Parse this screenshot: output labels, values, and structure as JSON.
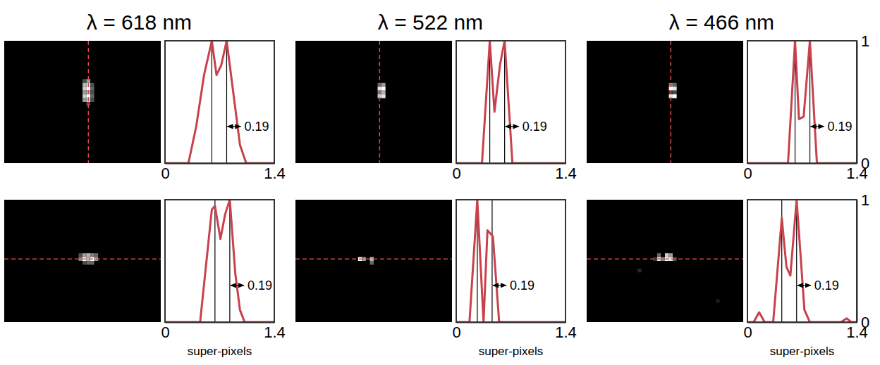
{
  "chart_data": [
    {
      "type": "heatmap",
      "title": "λ = 618 nm",
      "xlim": [
        0,
        40
      ],
      "ylim": [
        0,
        32
      ],
      "tick_labels": false,
      "color": "#e0454f",
      "cut_x": 21.5,
      "cells": [
        [
          10,
          20,
          0.3
        ],
        [
          10,
          21,
          0.6
        ],
        [
          11,
          20,
          0.7
        ],
        [
          11,
          21,
          0.9
        ],
        [
          11,
          22,
          0.3
        ],
        [
          12,
          20,
          0.8
        ],
        [
          12,
          21,
          1
        ],
        [
          12,
          22,
          0.4
        ],
        [
          13,
          20,
          0.6
        ],
        [
          13,
          21,
          0.7
        ],
        [
          13,
          22,
          0.3
        ],
        [
          14,
          20,
          0.8
        ],
        [
          14,
          21,
          1
        ],
        [
          14,
          22,
          0.4
        ],
        [
          15,
          20,
          0.6
        ],
        [
          15,
          21,
          0.8
        ],
        [
          15,
          22,
          0.3
        ],
        [
          16,
          21,
          0.3
        ]
      ]
    },
    {
      "type": "line",
      "color": "#c8414b",
      "xlim": [
        0,
        1.4
      ],
      "xticks": [
        0,
        1.4
      ],
      "ylim": [
        0,
        1
      ],
      "tick_labels": "x",
      "x": [
        0,
        0.3,
        0.4,
        0.5,
        0.6,
        0.66,
        0.72,
        0.79,
        0.88,
        0.96,
        1.04,
        1.4
      ],
      "values": [
        0,
        0,
        0.3,
        0.72,
        1,
        0.72,
        0.8,
        1,
        0.55,
        0.15,
        0,
        0
      ],
      "markers": [
        0.6,
        0.79
      ],
      "separation": 0.19
    },
    {
      "type": "heatmap",
      "title": "λ = 522 nm",
      "xlim": [
        0,
        40
      ],
      "ylim": [
        0,
        32
      ],
      "tick_labels": false,
      "color": "#e0454f",
      "cut_x": 21.5,
      "cells": [
        [
          11,
          21,
          0.4
        ],
        [
          11,
          22,
          0.6
        ],
        [
          12,
          21,
          0.9
        ],
        [
          12,
          22,
          1
        ],
        [
          13,
          21,
          0.5
        ],
        [
          13,
          22,
          0.7
        ],
        [
          14,
          21,
          0.8
        ],
        [
          14,
          22,
          0.9
        ]
      ]
    },
    {
      "type": "line",
      "color": "#c8414b",
      "xlim": [
        0,
        1.4
      ],
      "xticks": [
        0,
        1.4
      ],
      "ylim": [
        0,
        1
      ],
      "tick_labels": "x",
      "x": [
        0,
        0.33,
        0.43,
        0.49,
        0.56,
        0.62,
        0.72,
        1.4
      ],
      "values": [
        0,
        0,
        1,
        0.42,
        0.8,
        1,
        0,
        0
      ],
      "markers": [
        0.43,
        0.62
      ],
      "separation": 0.19
    },
    {
      "type": "heatmap",
      "title": "λ = 466 nm",
      "xlim": [
        0,
        40
      ],
      "ylim": [
        0,
        32
      ],
      "tick_labels": false,
      "color": "#e0454f",
      "cut_x": 21.5,
      "cells": [
        [
          11,
          21,
          0.5
        ],
        [
          11,
          22,
          0.4
        ],
        [
          12,
          21,
          1
        ],
        [
          12,
          22,
          0.9
        ],
        [
          13,
          21,
          0.2
        ],
        [
          13,
          22,
          0.3
        ],
        [
          14,
          21,
          0.9
        ],
        [
          14,
          22,
          1
        ]
      ]
    },
    {
      "type": "line",
      "color": "#c8414b",
      "xlim": [
        0,
        1.4
      ],
      "xticks": [
        0,
        1.4
      ],
      "ylim": [
        0,
        1
      ],
      "yticks": [
        0,
        1
      ],
      "x": [
        0,
        0.52,
        0.61,
        0.66,
        0.72,
        0.8,
        0.89,
        1.4
      ],
      "values": [
        0,
        0,
        1,
        0.36,
        0.38,
        1,
        0,
        0
      ],
      "markers": [
        0.61,
        0.8
      ],
      "separation": 0.19
    },
    {
      "type": "heatmap",
      "xlim": [
        0,
        40
      ],
      "ylim": [
        0,
        32
      ],
      "tick_labels": false,
      "color": "#e0454f",
      "cut_y": 15.5,
      "cells": [
        [
          14,
          19,
          0.3
        ],
        [
          14,
          20,
          0.6
        ],
        [
          14,
          21,
          0.7
        ],
        [
          14,
          22,
          0.5
        ],
        [
          14,
          23,
          0.4
        ],
        [
          15,
          19,
          0.5
        ],
        [
          15,
          20,
          1
        ],
        [
          15,
          21,
          0.7
        ],
        [
          15,
          22,
          1
        ],
        [
          15,
          23,
          0.6
        ],
        [
          16,
          20,
          0.3
        ],
        [
          16,
          21,
          0.4
        ],
        [
          16,
          22,
          0.4
        ]
      ]
    },
    {
      "type": "line",
      "color": "#c8414b",
      "xlim": [
        0,
        1.4
      ],
      "xticks": [
        0,
        1.4
      ],
      "ylim": [
        0,
        1
      ],
      "tick_labels": "x",
      "xlabel": "super-pixels",
      "x": [
        0,
        0.45,
        0.6,
        0.64,
        0.71,
        0.77,
        0.83,
        0.9,
        0.96,
        1.02,
        1.4
      ],
      "values": [
        0,
        0,
        0.92,
        0.95,
        0.68,
        0.88,
        1,
        0.4,
        0.1,
        0,
        0
      ],
      "markers": [
        0.64,
        0.83
      ],
      "separation": 0.19
    },
    {
      "type": "heatmap",
      "xlim": [
        0,
        40
      ],
      "ylim": [
        0,
        32
      ],
      "tick_labels": false,
      "color": "#e0454f",
      "cut_y": 15.5,
      "cells": [
        [
          15,
          16,
          1
        ],
        [
          15,
          17,
          0.6
        ],
        [
          15,
          19,
          0.7
        ],
        [
          16,
          19,
          0.4
        ]
      ]
    },
    {
      "type": "line",
      "color": "#c8414b",
      "xlim": [
        0,
        1.4
      ],
      "xticks": [
        0,
        1.4
      ],
      "ylim": [
        0,
        1
      ],
      "tick_labels": "x",
      "xlabel": "super-pixels",
      "x": [
        0,
        0.17,
        0.27,
        0.35,
        0.4,
        0.47,
        0.55,
        1.4
      ],
      "values": [
        0,
        0,
        1,
        0,
        0.75,
        0.7,
        0,
        0
      ],
      "markers": [
        0.27,
        0.46
      ],
      "separation": 0.19
    },
    {
      "type": "heatmap",
      "xlim": [
        0,
        40
      ],
      "ylim": [
        0,
        32
      ],
      "tick_labels": false,
      "color": "#e0454f",
      "cut_y": 15.5,
      "cells": [
        [
          14,
          18,
          0.4
        ],
        [
          14,
          20,
          0.8
        ],
        [
          14,
          21,
          0.6
        ],
        [
          15,
          17,
          0.2
        ],
        [
          15,
          18,
          0.9
        ],
        [
          15,
          19,
          0.5
        ],
        [
          15,
          20,
          1
        ],
        [
          15,
          21,
          0.9
        ],
        [
          15,
          22,
          0.3
        ],
        [
          18,
          13,
          0.15
        ],
        [
          26,
          33,
          0.1
        ]
      ]
    },
    {
      "type": "line",
      "color": "#c8414b",
      "xlim": [
        0,
        1.4
      ],
      "xticks": [
        0,
        1.4
      ],
      "ylim": [
        0,
        1
      ],
      "yticks": [
        0,
        1
      ],
      "xlabel": "super-pixels",
      "x": [
        0,
        0.08,
        0.15,
        0.22,
        0.33,
        0.44,
        0.5,
        0.55,
        0.63,
        0.73,
        0.8,
        1.2,
        1.27,
        1.33,
        1.4
      ],
      "values": [
        0,
        0,
        0.08,
        0,
        0,
        0.85,
        0.45,
        0.38,
        1,
        0.1,
        0,
        0,
        0.03,
        0,
        0
      ],
      "markers": [
        0.44,
        0.63
      ],
      "separation": 0.19
    }
  ]
}
